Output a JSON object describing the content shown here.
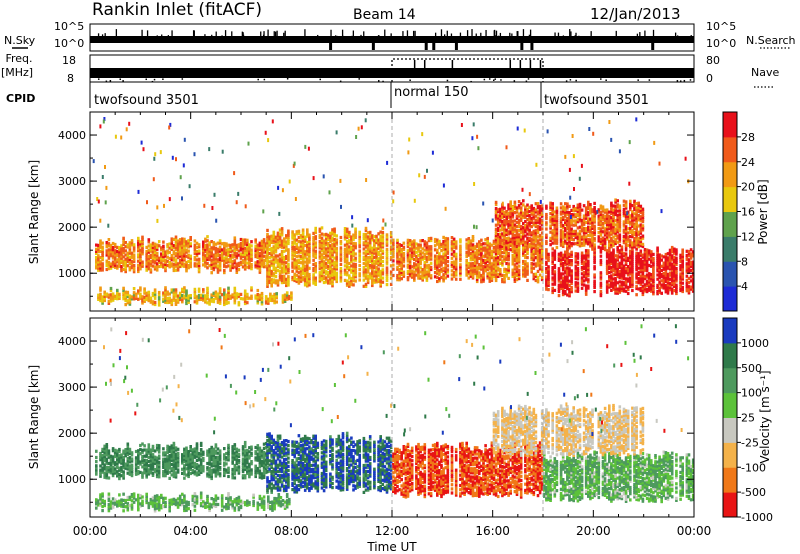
{
  "header": {
    "station": "Rankin Inlet (fitACF)",
    "beam": "Beam 14",
    "date": "12/Jan/2013"
  },
  "summary_panel": {
    "nsky_label": "N.Sky",
    "nsky_ticks": [
      "10^5",
      "10^0"
    ],
    "nsearch_label": "N.Search",
    "nsearch_ticks": [
      "10^5",
      "10^0"
    ],
    "freq_label": "Freq.",
    "freq_unit": "[MHz]",
    "freq_ticks": [
      "18",
      "8"
    ],
    "nave_label": "Nave",
    "nave_ticks": [
      "80",
      "0"
    ],
    "cpid_label": "CPID",
    "cpid_segments": [
      {
        "name": "twofsound 3501",
        "start_hour": 0,
        "end_hour": 12
      },
      {
        "name": "normal 150",
        "start_hour": 12,
        "end_hour": 18
      },
      {
        "name": "twofsound 3501",
        "start_hour": 18,
        "end_hour": 24
      }
    ]
  },
  "chart_data": [
    {
      "type": "heatmap",
      "title": "",
      "xlabel": "",
      "ylabel": "Slant Range [km]",
      "xlim": [
        0,
        24
      ],
      "ylim": [
        180,
        4500
      ],
      "yticks": [
        "1000",
        "2000",
        "3000",
        "4000"
      ],
      "colorbar": {
        "label": "Power [dB]",
        "ticks": [
          "4",
          "8",
          "12",
          "16",
          "20",
          "24",
          "28"
        ],
        "colors": [
          "#1d2bd6",
          "#2a54b0",
          "#3a7c6a",
          "#5fa24c",
          "#e8c80e",
          "#f19a14",
          "#f05a1a",
          "#e8101a"
        ]
      },
      "bands": [
        {
          "start_hour": 0.2,
          "end_hour": 7,
          "range_low": 1000,
          "range_high": 1800,
          "level": 24
        },
        {
          "start_hour": 0.2,
          "end_hour": 8,
          "range_low": 300,
          "range_high": 700,
          "level": 20
        },
        {
          "start_hour": 7,
          "end_hour": 12,
          "range_low": 700,
          "range_high": 2000,
          "level": 22
        },
        {
          "start_hour": 12,
          "end_hour": 18,
          "range_low": 800,
          "range_high": 1800,
          "level": 24
        },
        {
          "start_hour": 18,
          "end_hour": 24,
          "range_low": 500,
          "range_high": 1600,
          "level": 30
        },
        {
          "start_hour": 16,
          "end_hour": 22,
          "range_low": 1500,
          "range_high": 2600,
          "level": 26
        }
      ]
    },
    {
      "type": "heatmap",
      "title": "",
      "xlabel": "Time UT",
      "ylabel": "Slant Range [km]",
      "xlim": [
        0,
        24
      ],
      "ylim": [
        180,
        4500
      ],
      "xticks": [
        "00:00",
        "04:00",
        "08:00",
        "12:00",
        "16:00",
        "20:00",
        "00:00"
      ],
      "yticks": [
        "1000",
        "2000",
        "3000",
        "4000"
      ],
      "colorbar": {
        "label": "Velocity [m s⁻¹]",
        "ticks": [
          "1000",
          "500",
          "100",
          "25",
          "-25",
          "-100",
          "-500",
          "-1000"
        ],
        "colors": [
          "#1a3bbf",
          "#2f7a4a",
          "#4e9a5e",
          "#5cc23a",
          "#c8c8c0",
          "#f4b24a",
          "#f07818",
          "#e81414"
        ]
      },
      "bands": [
        {
          "start_hour": 0.2,
          "end_hour": 7,
          "range_low": 1000,
          "range_high": 1800,
          "level": 500
        },
        {
          "start_hour": 0.2,
          "end_hour": 8,
          "range_low": 300,
          "range_high": 700,
          "level": 100
        },
        {
          "start_hour": 7,
          "end_hour": 12,
          "range_low": 700,
          "range_high": 2000,
          "level": 1000
        },
        {
          "start_hour": 12,
          "end_hour": 18,
          "range_low": 600,
          "range_high": 1800,
          "level": -500
        },
        {
          "start_hour": 18,
          "end_hour": 24,
          "range_low": 500,
          "range_high": 1600,
          "level": 100
        },
        {
          "start_hour": 16,
          "end_hour": 22,
          "range_low": 1500,
          "range_high": 2600,
          "level": -25
        }
      ]
    }
  ]
}
